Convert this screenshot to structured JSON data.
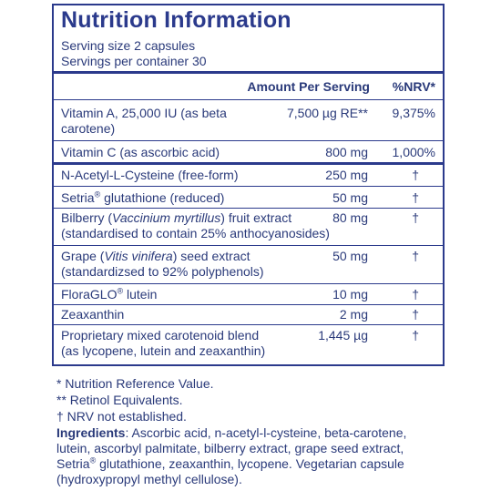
{
  "panel": {
    "title": "Nutrition Information",
    "serving_size": "Serving size  2 capsules",
    "servings_per_container": "Servings per container  30",
    "header_amount": "Amount Per Serving",
    "header_nrv": "%NRV*"
  },
  "rows": {
    "vit_a": {
      "line1": "Vitamin A, 25,000 IU (as beta",
      "line2": "carotene)",
      "amount": "7,500 µg RE**",
      "nrv": "9,375%"
    },
    "vit_c": {
      "name": "Vitamin C (as ascorbic acid)",
      "amount": "800 mg",
      "nrv": "1,000%"
    },
    "nac": {
      "name": "N-Acetyl-L-Cysteine (free-form)",
      "amount": "250 mg",
      "nrv": "†"
    },
    "setria": {
      "brand": "Setria",
      "mark": "®",
      "rest": " glutathione (reduced)",
      "amount": "50 mg",
      "nrv": "†"
    },
    "bilberry": {
      "pre": "Bilberry (",
      "latin": "Vaccinium myrtillus",
      "post": ") fruit extract",
      "line2": "(standardised to contain 25% anthocyanosides)",
      "amount": "80 mg",
      "nrv": "†"
    },
    "grape": {
      "pre": "Grape (",
      "latin": "Vitis vinifera",
      "post": ") seed extract",
      "line2": "(standardizsed to 92% polyphenols)",
      "amount": "50 mg",
      "nrv": "†"
    },
    "floraglo": {
      "brand": "FloraGLO",
      "mark": "®",
      "rest": " lutein",
      "amount": "10 mg",
      "nrv": "†"
    },
    "zeaxanthin": {
      "name": "Zeaxanthin",
      "amount": "2 mg",
      "nrv": "†"
    },
    "carotenoid": {
      "line1": "Proprietary mixed carotenoid blend",
      "line2": "(as lycopene, lutein and zeaxanthin)",
      "amount": "1,445 µg",
      "nrv": "†"
    }
  },
  "footnotes": {
    "nrv": "* Nutrition Reference Value.",
    "retinol": "** Retinol Equivalents.",
    "dagger": "† NRV not established."
  },
  "ingredients": {
    "label": "Ingredients",
    "text_before": ": Ascorbic acid, n-acetyl-l-cysteine, beta-carotene, lutein, ascorbyl palmitate, bilberry extract, grape seed extract, Setria",
    "mark": "®",
    "text_after": " glutathione, zeaxanthin, lycopene. Vegetarian capsule (hydroxypropyl methyl cellulose)."
  },
  "colors": {
    "border": "#2b3a8c",
    "text": "#2a3a7a"
  }
}
